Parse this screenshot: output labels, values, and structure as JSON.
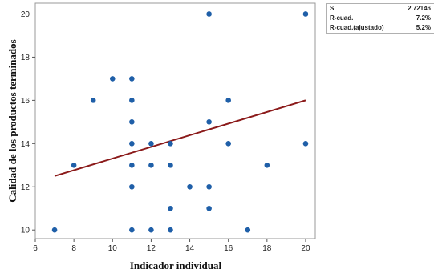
{
  "chart_data": {
    "type": "scatter",
    "xlabel": "Indicador individual",
    "ylabel": "Calidad de los productos terminados",
    "xlim": [
      6,
      20.5
    ],
    "ylim": [
      9.6,
      20.5
    ],
    "x_ticks": [
      6,
      8,
      10,
      12,
      14,
      16,
      18,
      20
    ],
    "y_ticks": [
      10,
      12,
      14,
      16,
      18,
      20
    ],
    "grid": false,
    "colors": {
      "points": "#1f5fa8",
      "fit_line": "#8b1a1a",
      "frame": "#999999"
    },
    "points": [
      {
        "x": 7,
        "y": 10
      },
      {
        "x": 8,
        "y": 13
      },
      {
        "x": 9,
        "y": 16
      },
      {
        "x": 10,
        "y": 17
      },
      {
        "x": 11,
        "y": 17
      },
      {
        "x": 11,
        "y": 16
      },
      {
        "x": 11,
        "y": 15
      },
      {
        "x": 11,
        "y": 14
      },
      {
        "x": 11,
        "y": 13
      },
      {
        "x": 11,
        "y": 12
      },
      {
        "x": 11,
        "y": 10
      },
      {
        "x": 12,
        "y": 14
      },
      {
        "x": 12,
        "y": 13
      },
      {
        "x": 12,
        "y": 10
      },
      {
        "x": 13,
        "y": 14
      },
      {
        "x": 13,
        "y": 13
      },
      {
        "x": 13,
        "y": 11
      },
      {
        "x": 13,
        "y": 10
      },
      {
        "x": 14,
        "y": 12
      },
      {
        "x": 15,
        "y": 20
      },
      {
        "x": 15,
        "y": 15
      },
      {
        "x": 15,
        "y": 12
      },
      {
        "x": 15,
        "y": 11
      },
      {
        "x": 16,
        "y": 16
      },
      {
        "x": 16,
        "y": 14
      },
      {
        "x": 17,
        "y": 10
      },
      {
        "x": 18,
        "y": 13
      },
      {
        "x": 20,
        "y": 20
      },
      {
        "x": 20,
        "y": 14
      }
    ],
    "fit_line": {
      "x": [
        7,
        20
      ],
      "y": [
        12.5,
        16.0
      ]
    }
  },
  "stats": [
    {
      "label": "S",
      "value": "2.72146"
    },
    {
      "label": "R-cuad.",
      "value": "7.2%"
    },
    {
      "label": "R-cuad.(ajustado)",
      "value": "5.2%"
    }
  ]
}
